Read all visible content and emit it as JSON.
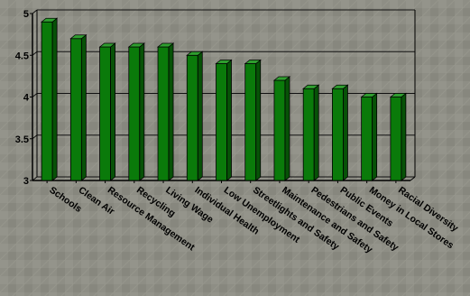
{
  "chart_data": {
    "type": "bar",
    "title": "",
    "xlabel": "",
    "ylabel": "",
    "categories": [
      "Schools",
      "Clean Air",
      "Resource Management",
      "Recycling",
      "Living Wage",
      "Individual Health",
      "Low Unemployment",
      "Streetlights and Safety",
      "Maintenance and Safety",
      "Pedestrians and Safety",
      "Public Events",
      "Money in Local Stores",
      "Racial Diversity"
    ],
    "values": [
      4.9,
      4.7,
      4.6,
      4.6,
      4.6,
      4.5,
      4.4,
      4.4,
      4.2,
      4.1,
      4.1,
      4.0,
      4.0
    ],
    "ylim": [
      3,
      5
    ],
    "yticks": [
      "3",
      "3.5",
      "4",
      "4.5",
      "5"
    ],
    "grid": true,
    "legend": "none",
    "bar_color": "#0a7a0a",
    "bar_side_color": "#075207",
    "bar_top_color": "#2f9e2f",
    "background_color": "#8f8f86"
  }
}
